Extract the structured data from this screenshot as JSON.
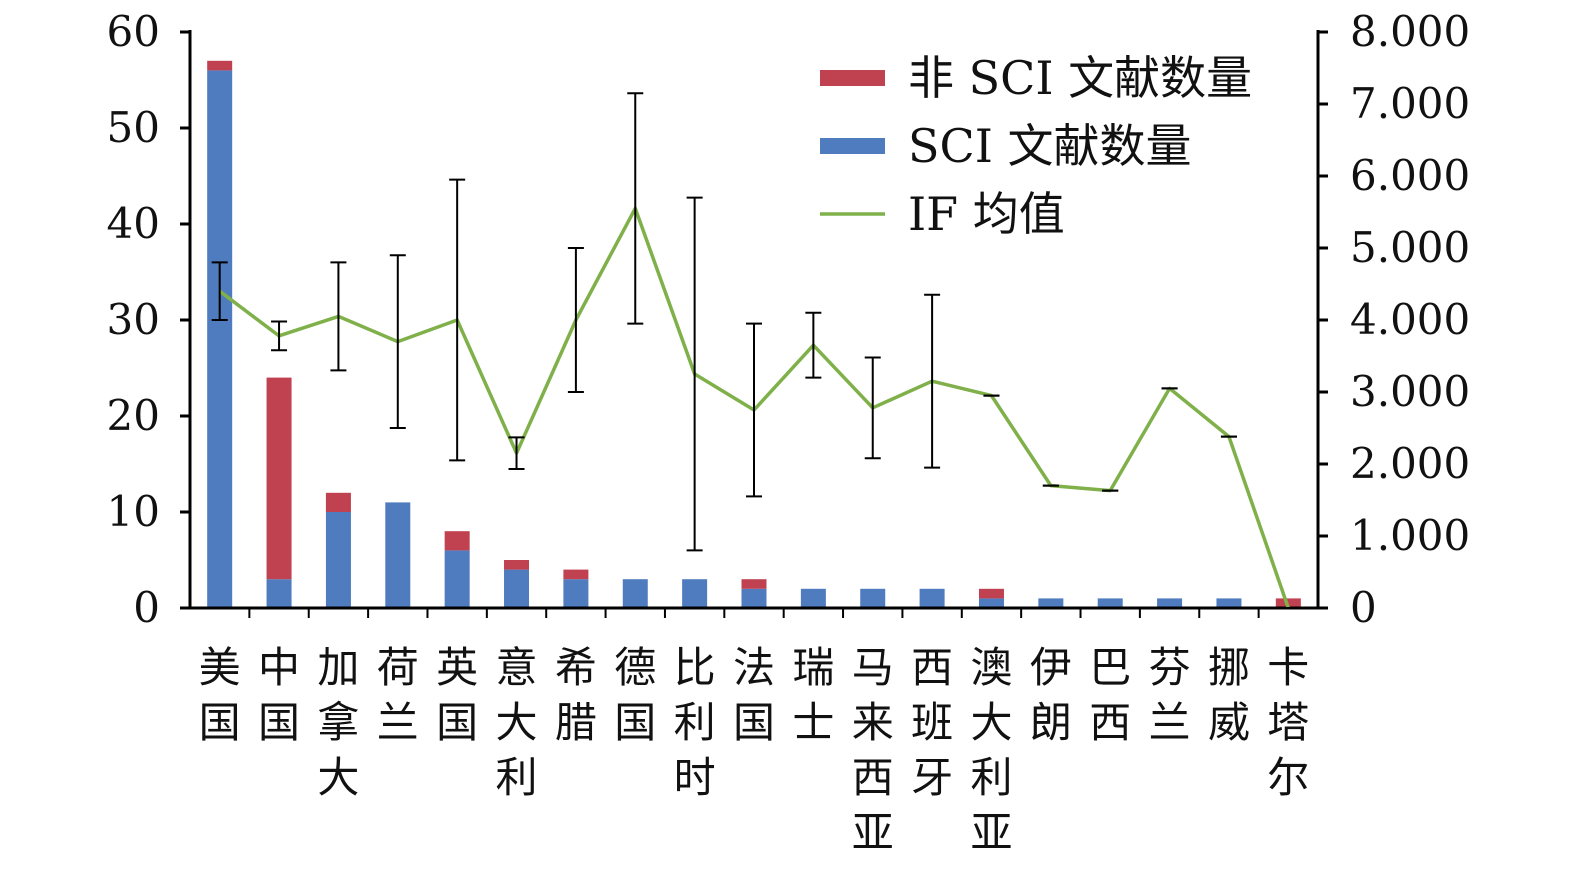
{
  "chart_data": {
    "type": "bar",
    "stacked": true,
    "title": "",
    "xlabel": "",
    "ylabel": "",
    "categories": [
      "美国",
      "中国",
      "加拿大",
      "荷兰",
      "英国",
      "意大利",
      "希腊",
      "德国",
      "比利时",
      "法国",
      "瑞士",
      "马来西亚",
      "西班牙",
      "澳大利亚",
      "伊朗",
      "巴西",
      "芬兰",
      "挪威",
      "卡塔尔"
    ],
    "series": [
      {
        "name": "SCI 文献数量",
        "type": "bar",
        "axis": "left",
        "color": "#4f7bbf",
        "values": [
          56,
          3,
          10,
          11,
          6,
          4,
          3,
          3,
          3,
          2,
          2,
          2,
          2,
          1,
          1,
          1,
          1,
          1,
          0
        ]
      },
      {
        "name": "非 SCI 文献数量",
        "type": "bar",
        "axis": "left",
        "color": "#c0414f",
        "values": [
          1,
          21,
          2,
          0,
          2,
          1,
          1,
          0,
          0,
          1,
          0,
          0,
          0,
          1,
          0,
          0,
          0,
          0,
          1
        ]
      },
      {
        "name": "IF 均值",
        "type": "line",
        "axis": "right",
        "color": "#7fb04a",
        "values": [
          4.4,
          3.78,
          4.05,
          3.7,
          4.0,
          2.15,
          4.0,
          5.55,
          3.25,
          2.75,
          3.65,
          2.78,
          3.15,
          2.95,
          1.7,
          1.63,
          3.05,
          2.38,
          0.0
        ],
        "error": [
          0.4,
          0.2,
          0.75,
          1.2,
          1.95,
          0.22,
          1.0,
          1.6,
          2.45,
          1.2,
          0.45,
          0.7,
          1.2,
          0,
          0,
          0,
          0,
          0,
          0
        ]
      }
    ],
    "y_left": {
      "min": 0,
      "max": 60,
      "ticks": [
        "0",
        "10",
        "20",
        "30",
        "40",
        "50",
        "60"
      ]
    },
    "y_right": {
      "min": 0,
      "max": 8,
      "ticks": [
        "0",
        "1.000",
        "2.000",
        "3.000",
        "4.000",
        "5.000",
        "6.000",
        "7.000",
        "8.000"
      ]
    },
    "legend_position": "top-right",
    "legend": [
      "非 SCI 文献数量",
      "SCI 文献数量",
      "IF 均值"
    ],
    "grid": false
  }
}
